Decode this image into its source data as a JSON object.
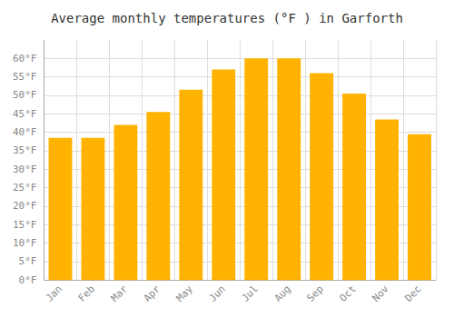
{
  "chart_data": {
    "type": "bar",
    "title": "Average monthly temperatures (°F ) in Garforth",
    "categories": [
      "Jan",
      "Feb",
      "Mar",
      "Apr",
      "May",
      "Jun",
      "Jul",
      "Aug",
      "Sep",
      "Oct",
      "Nov",
      "Dec"
    ],
    "values": [
      38.5,
      38.5,
      42.0,
      45.5,
      51.5,
      57.0,
      60.0,
      60.0,
      56.0,
      50.5,
      43.5,
      39.5
    ],
    "color": "#FFB300",
    "ylim": [
      0,
      65
    ],
    "yticks": [
      {
        "value": 0,
        "label": "0°F"
      },
      {
        "value": 5,
        "label": "5°F"
      },
      {
        "value": 10,
        "label": "10°F"
      },
      {
        "value": 15,
        "label": "15°F"
      },
      {
        "value": 20,
        "label": "20°F"
      },
      {
        "value": 25,
        "label": "25°F"
      },
      {
        "value": 30,
        "label": "30°F"
      },
      {
        "value": 35,
        "label": "35°F"
      },
      {
        "value": 40,
        "label": "40°F"
      },
      {
        "value": 45,
        "label": "45°F"
      },
      {
        "value": 50,
        "label": "50°F"
      },
      {
        "value": 55,
        "label": "55°F"
      },
      {
        "value": 60,
        "label": "60°F"
      }
    ],
    "grid": true
  }
}
